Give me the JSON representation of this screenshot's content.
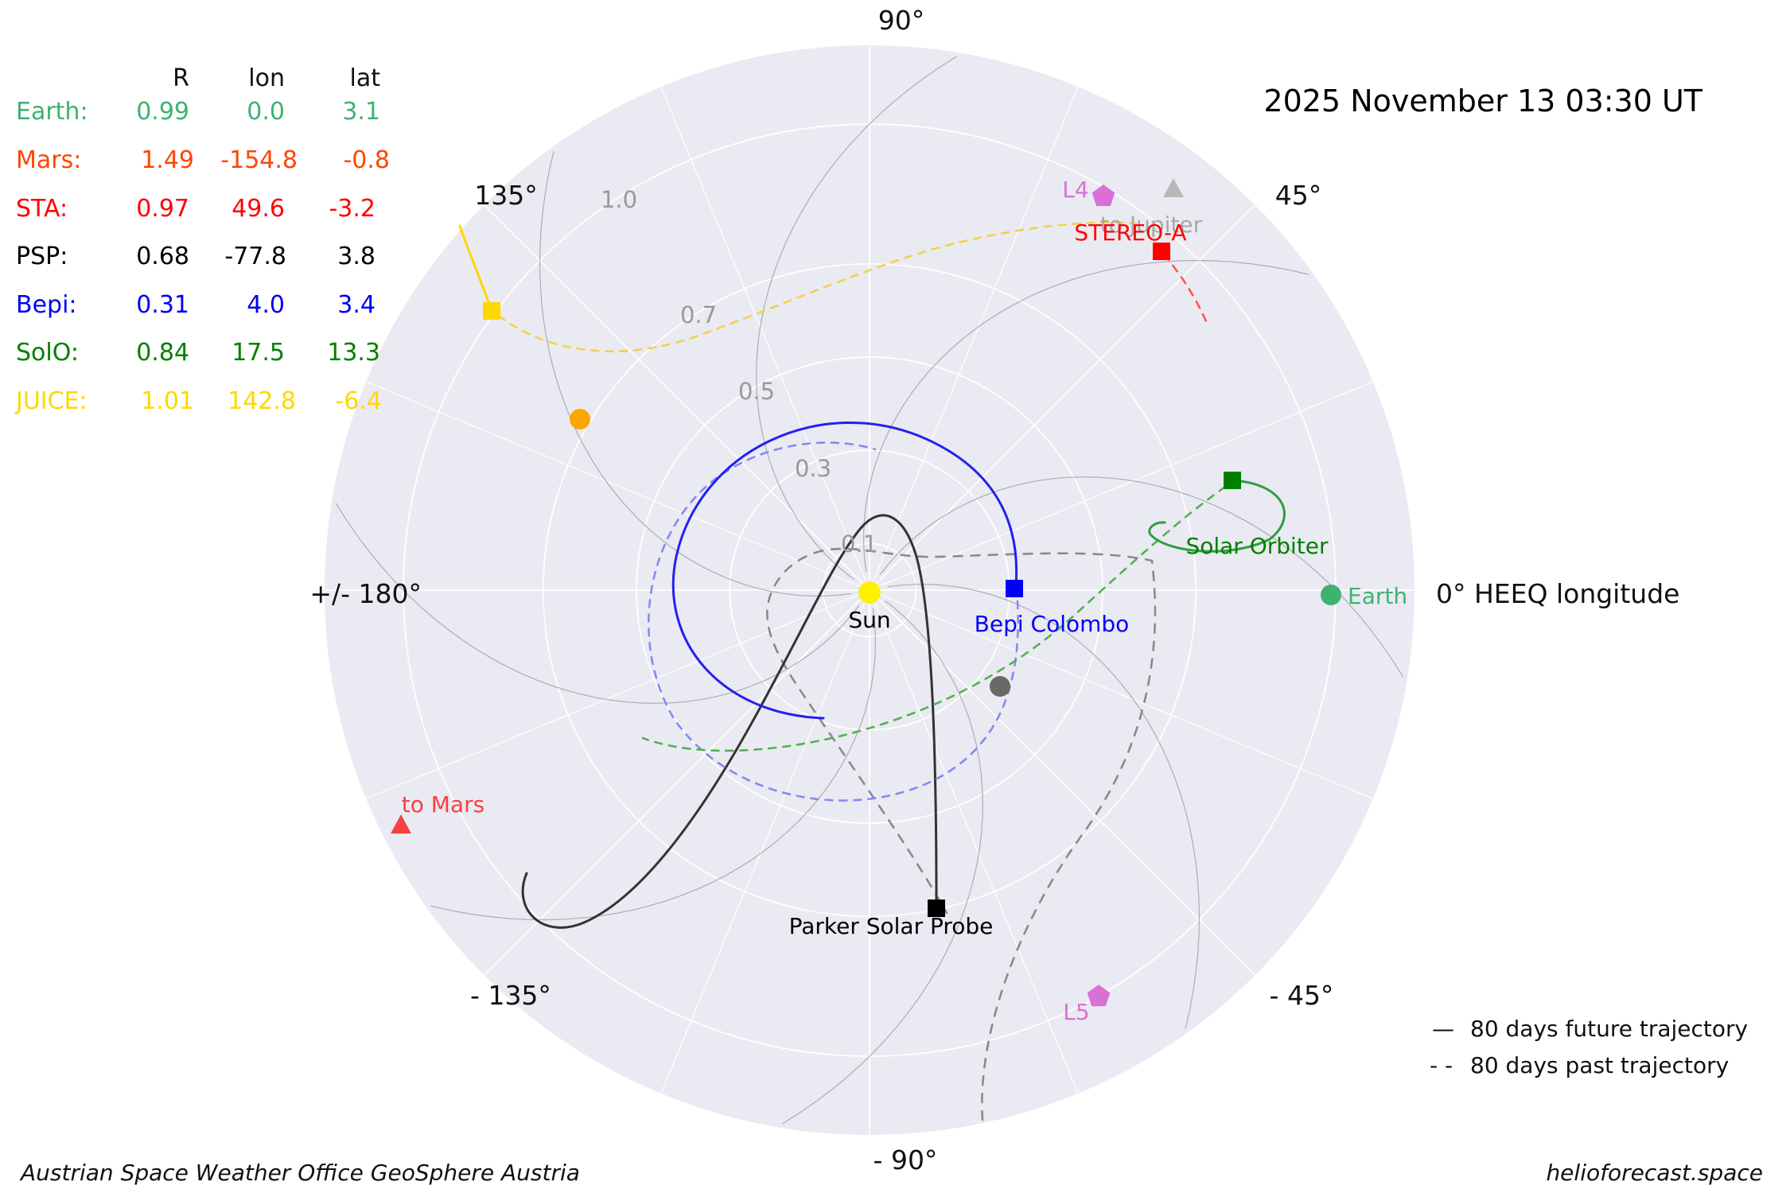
{
  "title": {
    "datetime": "2025 November 13  03:30 UT"
  },
  "table": {
    "headers": {
      "r": "R",
      "lon": "lon",
      "lat": "lat"
    },
    "rows": [
      {
        "name": "Earth:",
        "r": "0.99",
        "lon": "0.0",
        "lat": "3.1",
        "color": "#3CB371"
      },
      {
        "name": "Mars:",
        "r": "1.49",
        "lon": "-154.8",
        "lat": "-0.8",
        "color": "#FF4500"
      },
      {
        "name": "STA:",
        "r": "0.97",
        "lon": "49.6",
        "lat": "-3.2",
        "color": "#FF0000"
      },
      {
        "name": "PSP:",
        "r": "0.68",
        "lon": "-77.8",
        "lat": "3.8",
        "color": "#000000"
      },
      {
        "name": "Bepi:",
        "r": "0.31",
        "lon": "4.0",
        "lat": "3.4",
        "color": "#0000F5"
      },
      {
        "name": "SolO:",
        "r": "0.84",
        "lon": "17.5",
        "lat": "13.3",
        "color": "#008000"
      },
      {
        "name": "JUICE:",
        "r": "1.01",
        "lon": "142.8",
        "lat": "-6.4",
        "color": "#FFD700"
      }
    ]
  },
  "axis": {
    "top": "90°",
    "upper_right": "45°",
    "upper_left": "135°",
    "left": "+/- 180°",
    "lower_left": "- 135°",
    "bottom": "- 90°",
    "lower_right": "- 45°",
    "right": "0° HEEQ longitude",
    "rings": [
      "0.1",
      "0.3",
      "0.5",
      "0.7",
      "1.0"
    ]
  },
  "labels": {
    "sun": "Sun",
    "earth": "Earth",
    "bepi": "Bepi Colombo",
    "solo": "Solar Orbiter",
    "psp": "Parker Solar Probe",
    "sta": "STEREO-A",
    "jupiter": "to Jupiter",
    "mars": "to Mars",
    "l4": "L4",
    "l5": "L5"
  },
  "legend": {
    "future_symbol": "—",
    "future_label": "80 days future trajectory",
    "past_symbol": "- -",
    "past_label": "80 days past trajectory"
  },
  "footer": {
    "left": "Austrian Space Weather Office   GeoSphere Austria",
    "right": "helioforecast.space"
  },
  "colors": {
    "plot_bg": "#EAEAF2",
    "grid": "#FFFFFF",
    "spiral": "#ACACB4",
    "ring_label": "#999999",
    "sun": "#FFF000",
    "earth": "#3CB371",
    "venus": "#FFA500",
    "mercury": "#696969",
    "mars": "#F84040",
    "sta": "#FF0000",
    "sta_dash": "#FF5555",
    "psp": "#000000",
    "psp_past": "#8A8A8A",
    "bepi": "#0000F5",
    "bepi_dash": "#8888F2",
    "solo": "#008000",
    "solo_dash": "#55B055",
    "juice": "#FFD700",
    "juice_dash": "#F3D04E",
    "lagrange": "#DA70D6",
    "jupiter_marker": "#B8B8B8",
    "jupiter_text": "#A8A8A8"
  },
  "chart_data": {
    "type": "scatter",
    "projection": "polar",
    "frame": "HEEQ longitude, Earth fixed at 0°",
    "title": "2025 November 13  03:30 UT",
    "angular_axis": {
      "label": "0° HEEQ longitude",
      "tick_labels": [
        "90°",
        "45°",
        "0°",
        "- 45°",
        "- 90°",
        "- 135°",
        "+/- 180°",
        "135°"
      ]
    },
    "radial_axis": {
      "unit": "AU",
      "ticks": [
        0.1,
        0.3,
        0.5,
        0.7,
        1.0
      ],
      "max": 1.17
    },
    "series": [
      {
        "name": "Earth",
        "R_au": 0.99,
        "lon_deg": 0.0,
        "lat_deg": 3.1,
        "marker": "circle",
        "color": "#3CB371"
      },
      {
        "name": "Mars",
        "R_au": 1.49,
        "lon_deg": -154.8,
        "lat_deg": -0.8,
        "marker": "triangle-at-plot-edge",
        "color": "#F84040"
      },
      {
        "name": "STEREO-A",
        "R_au": 0.97,
        "lon_deg": 49.6,
        "lat_deg": -3.2,
        "marker": "square",
        "color": "#FF0000"
      },
      {
        "name": "Parker Solar Probe",
        "R_au": 0.68,
        "lon_deg": -77.8,
        "lat_deg": 3.8,
        "marker": "square",
        "color": "#000000"
      },
      {
        "name": "Bepi Colombo",
        "R_au": 0.31,
        "lon_deg": 4.0,
        "lat_deg": 3.4,
        "marker": "square",
        "color": "#0000F5"
      },
      {
        "name": "Solar Orbiter",
        "R_au": 0.84,
        "lon_deg": 17.5,
        "lat_deg": 13.3,
        "marker": "square",
        "color": "#008000"
      },
      {
        "name": "JUICE",
        "R_au": 1.01,
        "lon_deg": 142.8,
        "lat_deg": -6.4,
        "marker": "square",
        "color": "#FFD700"
      }
    ],
    "additional_markers": [
      {
        "name": "Sun",
        "marker": "circle",
        "color": "#FFF000",
        "position": "center"
      },
      {
        "name": "Venus (unlabeled)",
        "marker": "circle",
        "color": "#FFA500",
        "R_au": 0.72,
        "lon_deg": 149
      },
      {
        "name": "Mercury (unlabeled)",
        "marker": "circle",
        "color": "#696969",
        "R_au": 0.35,
        "lon_deg": -36
      },
      {
        "name": "L4",
        "marker": "pentagon",
        "color": "#DA70D6",
        "R_au": 1.0,
        "lon_deg": 60
      },
      {
        "name": "L5",
        "marker": "pentagon",
        "color": "#DA70D6",
        "R_au": 1.0,
        "lon_deg": -60
      },
      {
        "name": "to Jupiter",
        "marker": "triangle-at-plot-edge",
        "color": "#B8B8B8",
        "lon_deg": 53
      }
    ],
    "legend": [
      "80 days future trajectory (solid)",
      "80 days past trajectory (dashed)"
    ],
    "grid": true
  }
}
